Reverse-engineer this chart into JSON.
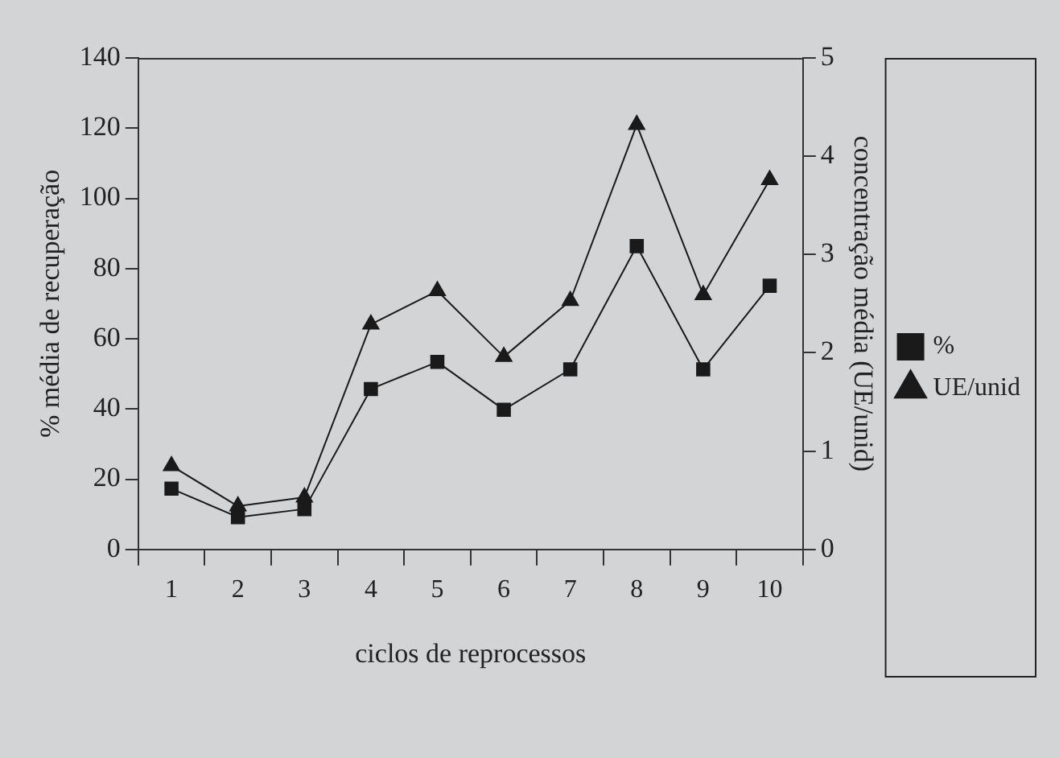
{
  "chart_data": {
    "type": "line",
    "xlabel": "ciclos de reprocessos",
    "ylabel": "% média de recuperação",
    "y2label": "concentração média (UE/unid)",
    "categories": [
      "1",
      "2",
      "3",
      "4",
      "5",
      "6",
      "7",
      "8",
      "9",
      "10"
    ],
    "series": [
      {
        "name": "%",
        "color": "#1a1a1a",
        "marker": "square",
        "values": [
          17.3,
          9.2,
          11.5,
          45.7,
          53.4,
          39.8,
          51.3,
          86.4,
          51.3,
          75.1
        ]
      },
      {
        "name": "UE/unid",
        "color": "#1a1a1a",
        "marker": "triangle",
        "axis": "y2",
        "values": [
          0.85,
          0.44,
          0.53,
          2.29,
          2.63,
          1.96,
          2.53,
          4.32,
          2.59,
          3.76
        ]
      }
    ],
    "ylim": [
      0,
      140
    ],
    "yticks": [
      0,
      20,
      40,
      60,
      80,
      100,
      120,
      140
    ],
    "y2lim": [
      0,
      5
    ],
    "y2ticks": [
      0,
      1,
      2,
      3,
      4,
      5
    ],
    "grid": false,
    "legend": "right",
    "line_style": "solid"
  }
}
